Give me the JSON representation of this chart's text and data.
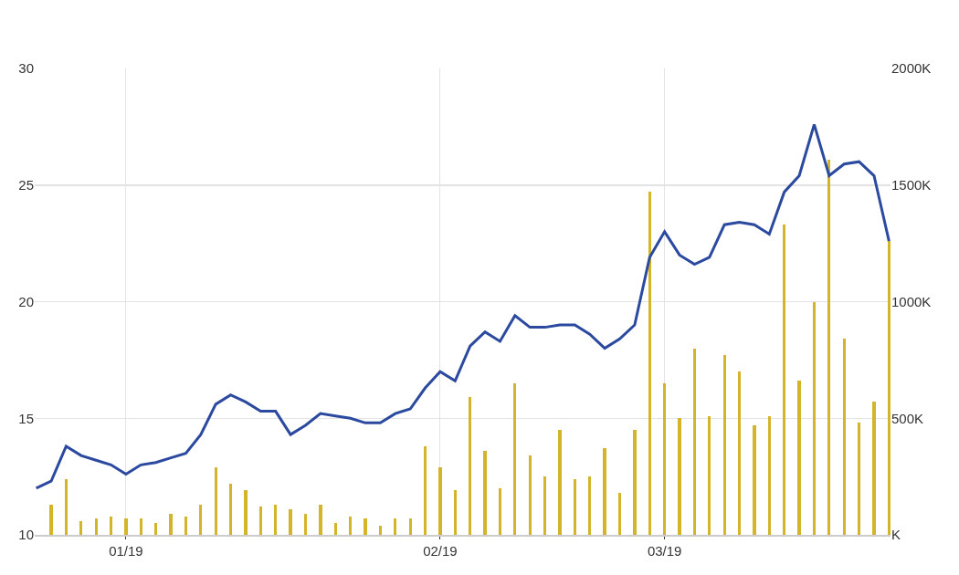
{
  "chart_data": {
    "type": "line",
    "categories": [
      null,
      null,
      null,
      null,
      null,
      null,
      "01/19",
      null,
      null,
      null,
      null,
      null,
      null,
      null,
      null,
      null,
      null,
      null,
      null,
      null,
      null,
      null,
      null,
      null,
      null,
      null,
      null,
      "02/19",
      null,
      null,
      null,
      null,
      null,
      null,
      null,
      null,
      null,
      null,
      null,
      null,
      null,
      null,
      "03/19",
      null,
      null,
      null,
      null,
      null,
      null,
      null,
      null,
      null,
      null,
      null,
      null,
      null,
      null,
      null
    ],
    "series": [
      {
        "type": "bar",
        "axis": "y2",
        "color": "#d4b52a",
        "values": [
          null,
          130,
          240,
          60,
          70,
          80,
          70,
          70,
          50,
          90,
          80,
          130,
          290,
          220,
          190,
          120,
          130,
          110,
          90,
          130,
          50,
          80,
          70,
          40,
          70,
          70,
          380,
          290,
          190,
          590,
          360,
          200,
          650,
          340,
          250,
          450,
          240,
          250,
          370,
          180,
          450,
          1470,
          650,
          500,
          800,
          510,
          770,
          700,
          470,
          510,
          1330,
          660,
          1000,
          1610,
          840,
          480,
          570,
          1260
        ]
      },
      {
        "color": "#2b4a9f",
        "values": [
          12.0,
          12.3,
          13.8,
          13.4,
          13.2,
          13.0,
          12.6,
          13.0,
          13.1,
          13.3,
          13.5,
          14.3,
          15.6,
          16.0,
          15.7,
          15.3,
          15.3,
          14.3,
          14.7,
          15.2,
          15.1,
          15.0,
          14.8,
          14.8,
          15.2,
          15.4,
          16.3,
          17.0,
          16.6,
          18.1,
          18.7,
          18.3,
          19.4,
          18.9,
          18.9,
          19.0,
          19.0,
          18.6,
          18.0,
          18.4,
          19.0,
          21.9,
          23.0,
          22.0,
          21.6,
          21.9,
          23.3,
          23.4,
          23.3,
          22.9,
          24.7,
          25.4,
          27.6,
          25.4,
          25.9,
          26.0,
          25.4,
          22.6
        ]
      }
    ],
    "ylim": [
      10,
      30
    ],
    "yticks": [
      10,
      15,
      20,
      25,
      30
    ],
    "y2lim": [
      0,
      2000
    ],
    "y2ticks": [
      {
        "value": 0,
        "label": "K"
      },
      {
        "value": 500,
        "label": "500K"
      },
      {
        "value": 1000,
        "label": "1000K"
      },
      {
        "value": 1500,
        "label": "1500K"
      },
      {
        "value": 2000,
        "label": "2000K"
      }
    ],
    "grid": true,
    "marker": "none",
    "line_style": "solid"
  }
}
